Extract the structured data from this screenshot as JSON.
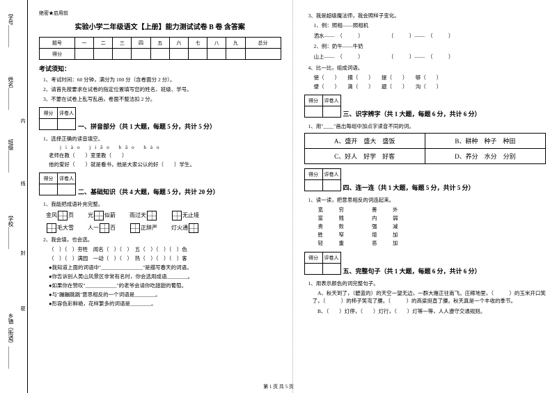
{
  "spine": {
    "l1": "学号________",
    "l2": "姓名________",
    "l3": "班级________",
    "l4": "学校________",
    "l5": "乡镇（街道）________",
    "d1": "内",
    "d2": "线",
    "d3": "封",
    "d4": "密"
  },
  "secret": "绝密★启用前",
  "title": "实验小学二年级语文【上册】能力测试试卷 B 卷  含答案",
  "score_header": [
    "题号",
    "一",
    "二",
    "三",
    "四",
    "五",
    "六",
    "七",
    "八",
    "九",
    "总分"
  ],
  "score_row": "得分",
  "notice_h": "考试须知：",
  "notices": [
    "1、考试时间：60 分钟，满分为 100 分（含卷面分 2 分）。",
    "2、请首先按要求在试卷的指定位置填写您的姓名、班级、学号。",
    "3、不要在试卷上乱写乱画，卷面不整洁扣 2 分。"
  ],
  "scorebox": [
    "得分",
    "评卷人"
  ],
  "s1": {
    "h": "一、拼音部分（共 1 大题，每题 5 分，共计 5 分）",
    "q": "1、选择正确的读音填空。",
    "py": "jiào   jiāo     hǎo    hào",
    "l1": "老师在教（　　）室里教（　　）",
    "l2": "他的爱好（　　）就是看书，他是大家公认的好（　　）学生。"
  },
  "s2": {
    "h": "二、基础知识（共 4 大题，每题 5 分，共计 20 分）",
    "q1": "1、我能把成语补充完整。",
    "idiom_r1": [
      [
        "金风",
        "页"
      ],
      [
        "光",
        "似箭"
      ],
      [
        "雨过天",
        ""
      ],
      [
        "",
        "无止境"
      ]
    ],
    "idiom_r2": [
      [
        "",
        "毛大雪"
      ],
      [
        "人一",
        "百"
      ],
      [
        "",
        "正辞严"
      ],
      [
        "灯火通",
        ""
      ]
    ],
    "q2": "2、我会填，也会选。",
    "f1": "（　）（　）夯牲　闻名（　）（　）　五（　）（　）（　）色",
    "f2": "（　）（　）满园　一动（　）（　）　热（　）（　）（　）客",
    "bullets": [
      "●我知道上面的词语中\"________________\"是描写春天的词语。",
      "●你告诉别人黄山风景区非常有名时，你会选用成语________。",
      "●如果你在赞叹\"____________\"的老爷会请你吃甜甜的葡萄。",
      "●与\"蹦蹦跳跳\"意思相反的一个词语是________。",
      "●形容色彩鲜艳，花样繁多的词语是________。"
    ]
  },
  "s2r": {
    "q3": "3、我是超级魔法师，我会照样子变化。",
    "ex": "1、例：照相——照相机",
    "p1a": "洒水——　（　　　）",
    "p1b": "（　　　）——　（　　　）",
    "ex2": "2、例：奶牛——牛奶",
    "p2a": "山上——　（　　　）",
    "p2b": "（　　　）——　（　　　）",
    "q4": "4、比一比，组成词语。",
    "r1": "使（　　）　　摘（　　）　　提（　　）　　够（　　）",
    "r2": "便（　　）　　滴（　　）　　题（　　）　　沟（　　）"
  },
  "s3": {
    "h": "三、识字辨字（共 1 大题，每题 6 分，共计 6 分）",
    "q": "1、用\"____\"画出每组中加点字读音不同的词。",
    "cells": [
      "A、盛开　盛大　盛饭",
      "B、耕种　种子　种田",
      "C、好人　好学　好客",
      "D、养分　水分　分别"
    ]
  },
  "s4": {
    "h": "四、连一连（共 1 大题，每题 5 分，共计 5 分）",
    "q": "1、读一读，把意思相反的词连起来。",
    "left": [
      "宽",
      "富",
      "贵",
      "胜",
      "轻",
      "穷",
      "贱",
      "败",
      "窄",
      "重"
    ],
    "right": [
      "善",
      "内",
      "强",
      "增",
      "恶",
      "外",
      "弱",
      "减",
      "加",
      "加"
    ]
  },
  "s5": {
    "h": "五、完整句子（共 1 大题，每题 6 分，共计 6 分）",
    "q": "1、用表示颜色的词完整句子。",
    "p1": "A、秋天到了，（碧蓝的）的天空一望无边，一群大雁正往南飞。庄稼地里，（　　　）的玉米开口笑了，（　　　）的柿子笑弯了腰。（　　　）的高粱挺直了腰。秋天真是一个丰收的季节。",
    "p2": "B、（　　）灯停，（　　）灯行，（　　）灯等一等，人人遵守交通规则。"
  },
  "footer": "第 1 页  共 5 页"
}
